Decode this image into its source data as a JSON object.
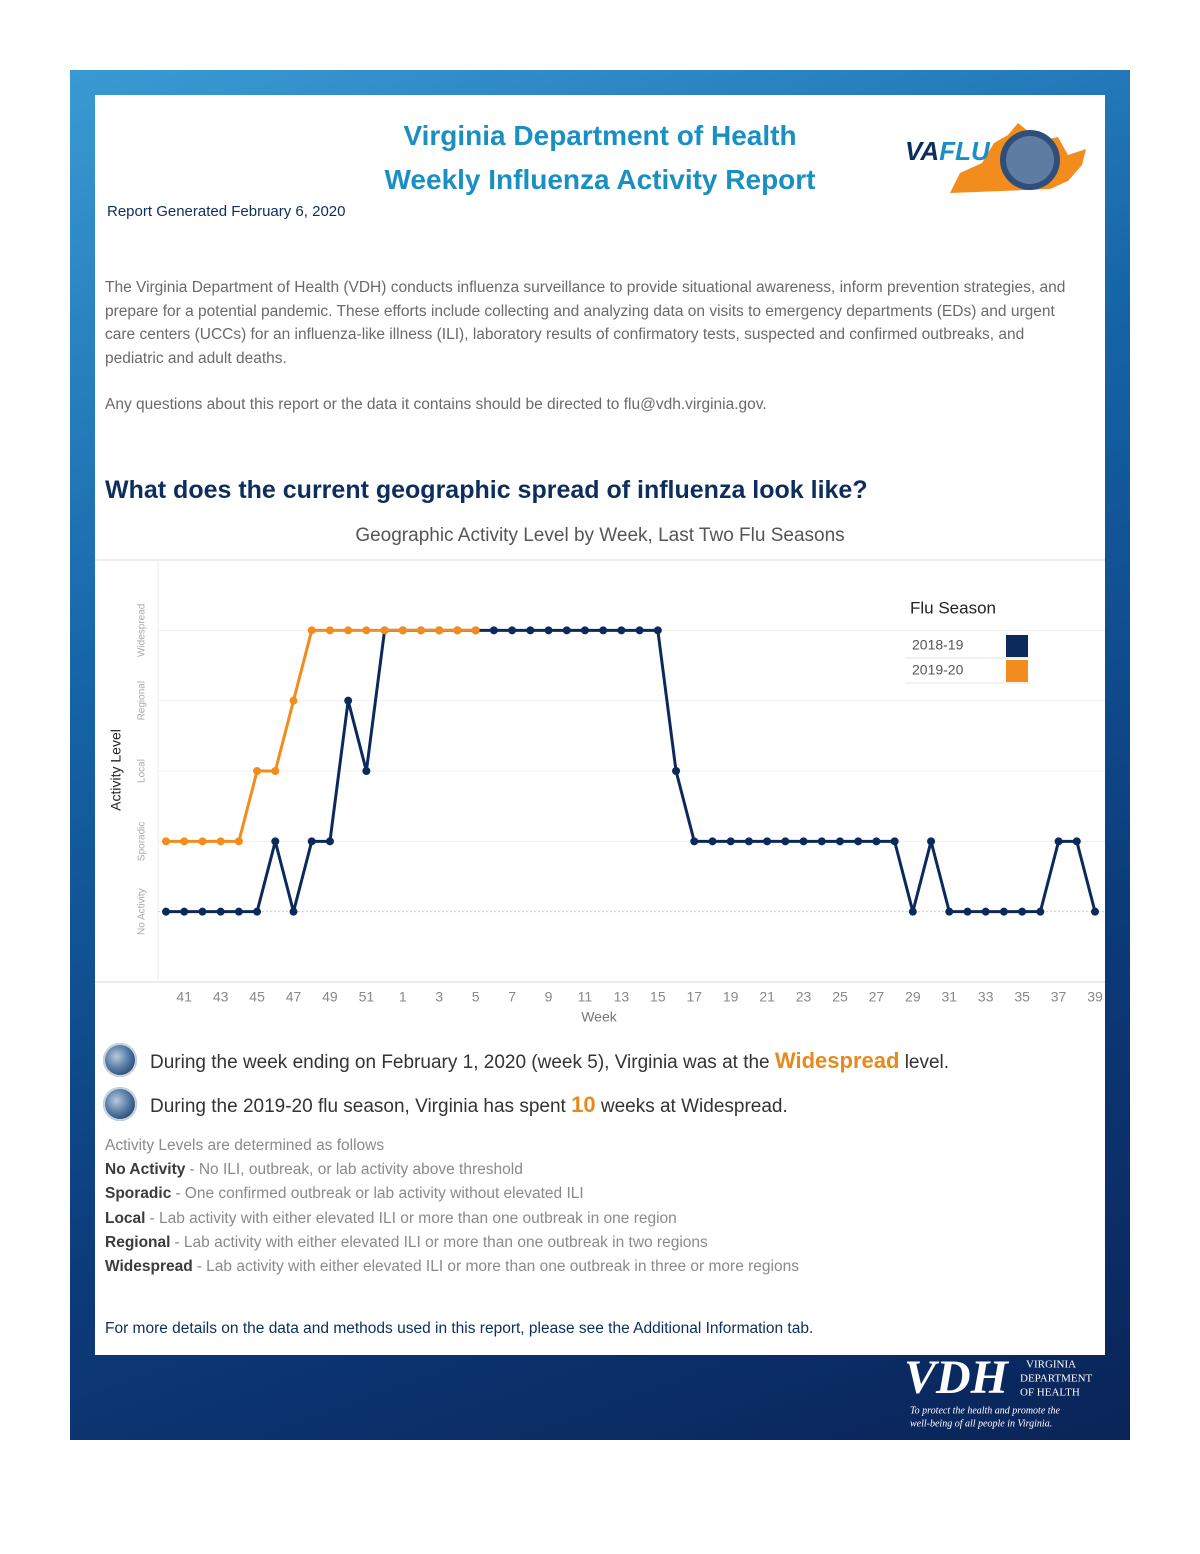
{
  "header": {
    "title_lines": [
      "Virginia Department of Health",
      "Weekly Influenza Activity Report"
    ],
    "report_date": "Report Generated February 6, 2020",
    "logo": {
      "prefix": "VA",
      "suffix": "FLU"
    }
  },
  "intro": {
    "paragraphs": [
      "The Virginia Department of Health (VDH) conducts influenza surveillance to provide situational awareness, inform prevention strategies, and prepare for a potential pandemic. These efforts include collecting and analyzing data on visits to emergency departments (EDs) and urgent care centers (UCCs) for an influenza-like illness (ILI), laboratory results of confirmatory tests, suspected and confirmed outbreaks, and pediatric and adult deaths.",
      "Any questions about this report or the data it contains should be directed to flu@vdh.virginia.gov."
    ]
  },
  "section_heading": "What does the current geographic spread of influenza look like?",
  "chart_data": {
    "type": "line",
    "title": "Geographic Activity Level by Week, Last Two Flu Seasons",
    "x_label": "Week",
    "y_label": "Activity Level",
    "categories": [
      null,
      41,
      null,
      43,
      null,
      45,
      null,
      47,
      null,
      49,
      null,
      51,
      null,
      1,
      null,
      3,
      null,
      5,
      null,
      7,
      null,
      9,
      null,
      11,
      null,
      13,
      null,
      15,
      null,
      17,
      null,
      19,
      null,
      21,
      null,
      23,
      null,
      25,
      null,
      27,
      null,
      29,
      null,
      31,
      null,
      33,
      null,
      35,
      null,
      37,
      null,
      39
    ],
    "ylim": [
      -1,
      5
    ],
    "yticks": [
      {
        "value": 0,
        "label": "No Activity"
      },
      {
        "value": 1,
        "label": "Sporadic"
      },
      {
        "value": 2,
        "label": "Local"
      },
      {
        "value": 3,
        "label": "Regional"
      },
      {
        "value": 4,
        "label": "Widespread"
      }
    ],
    "grid": true,
    "legend": {
      "title": "Flu Season",
      "position": "upper right"
    },
    "series": [
      {
        "name": "2018-19",
        "color": "#0b2a5b",
        "values": [
          0,
          0,
          0,
          0,
          0,
          0,
          1,
          0,
          1,
          1,
          3,
          2,
          4,
          4,
          4,
          4,
          4,
          4,
          4,
          4,
          4,
          4,
          4,
          4,
          4,
          4,
          4,
          4,
          2,
          1,
          1,
          1,
          1,
          1,
          1,
          1,
          1,
          1,
          1,
          1,
          1,
          0,
          1,
          0,
          0,
          0,
          0,
          0,
          0,
          1,
          1,
          0
        ]
      },
      {
        "name": "2019-20",
        "color": "#f28c1c",
        "values": [
          1,
          1,
          1,
          1,
          1,
          2,
          2,
          3,
          4,
          4,
          4,
          4,
          4,
          4,
          4,
          4,
          4,
          4,
          null,
          null,
          null,
          null,
          null,
          null,
          null,
          null,
          null,
          null,
          null,
          null,
          null,
          null,
          null,
          null,
          null,
          null,
          null,
          null,
          null,
          null,
          null,
          null,
          null,
          null,
          null,
          null,
          null,
          null,
          null,
          null,
          null,
          null
        ]
      }
    ]
  },
  "highlights": [
    {
      "before": "During the week ending on February 1, 2020 (week 5), Virginia was at the ",
      "emphasis": "Widespread",
      "after": " level."
    },
    {
      "before": "During the 2019-20 flu season, Virginia has spent ",
      "emphasis": "10",
      "after": " weeks at Widespread."
    }
  ],
  "definitions": {
    "intro": "Activity Levels are determined as follows",
    "items": [
      {
        "term": "No Activity",
        "description": "- No ILI, outbreak, or lab activity above threshold"
      },
      {
        "term": "Sporadic",
        "description": "- One confirmed outbreak or lab activity without elevated ILI"
      },
      {
        "term": "Local",
        "description": "- Lab activity with either elevated ILI or more than one outbreak in one region"
      },
      {
        "term": "Regional",
        "description": "- Lab activity with either elevated ILI or more than one outbreak in two regions"
      },
      {
        "term": "Widespread",
        "description": "- Lab activity with either elevated ILI or more than one outbreak in three or more regions"
      }
    ]
  },
  "footer_note": "For more details on the data and methods used in this report, please see the Additional Information tab.",
  "vdh_logo": {
    "mark": "VDH",
    "name_lines": [
      "VIRGINIA",
      "DEPARTMENT",
      "OF HEALTH"
    ],
    "tagline_lines": [
      "To protect the health and promote the",
      "well-being of all people in Virginia."
    ]
  }
}
